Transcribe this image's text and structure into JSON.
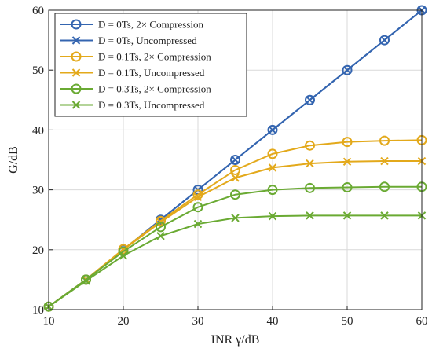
{
  "chart_data": {
    "type": "line",
    "xlabel": "INR γ/dB",
    "ylabel": "G/dB",
    "xlim": [
      10,
      60
    ],
    "ylim": [
      10,
      60
    ],
    "xticks": [
      "10",
      "20",
      "30",
      "40",
      "50",
      "60"
    ],
    "yticks": [
      "10",
      "20",
      "30",
      "40",
      "50",
      "60"
    ],
    "grid": true,
    "legend_position": "top-left",
    "x": [
      10,
      15,
      20,
      25,
      30,
      35,
      40,
      45,
      50,
      55,
      60
    ],
    "series": [
      {
        "name": "D = 0Ts, 2× Compression",
        "marker": "circle",
        "color": "#3465b0",
        "values": [
          10.5,
          15,
          20,
          25,
          30,
          35,
          40,
          45,
          50,
          55,
          60
        ]
      },
      {
        "name": "D = 0Ts, Uncompressed",
        "marker": "x",
        "color": "#3465b0",
        "values": [
          10.5,
          15,
          20,
          25,
          30,
          35,
          40,
          45,
          50,
          55,
          60
        ]
      },
      {
        "name": "D = 0.1Ts, 2× Compression",
        "marker": "circle",
        "color": "#e3a91b",
        "values": [
          10.5,
          15,
          20.1,
          24.8,
          29.2,
          33.3,
          36,
          37.4,
          38,
          38.2,
          38.3
        ]
      },
      {
        "name": "D = 0.1Ts, Uncompressed",
        "marker": "x",
        "color": "#e3a91b",
        "values": [
          10.5,
          15,
          20,
          24.6,
          28.8,
          32,
          33.7,
          34.4,
          34.7,
          34.8,
          34.8
        ]
      },
      {
        "name": "D = 0.3Ts, 2× Compression",
        "marker": "circle",
        "color": "#6aaa33",
        "values": [
          10.5,
          15,
          19.7,
          23.8,
          27.1,
          29.2,
          30,
          30.3,
          30.4,
          30.5,
          30.5
        ]
      },
      {
        "name": "D = 0.3Ts, Uncompressed",
        "marker": "x",
        "color": "#6aaa33",
        "values": [
          10.5,
          14.8,
          19,
          22.3,
          24.3,
          25.3,
          25.6,
          25.7,
          25.7,
          25.7,
          25.7
        ]
      }
    ]
  }
}
